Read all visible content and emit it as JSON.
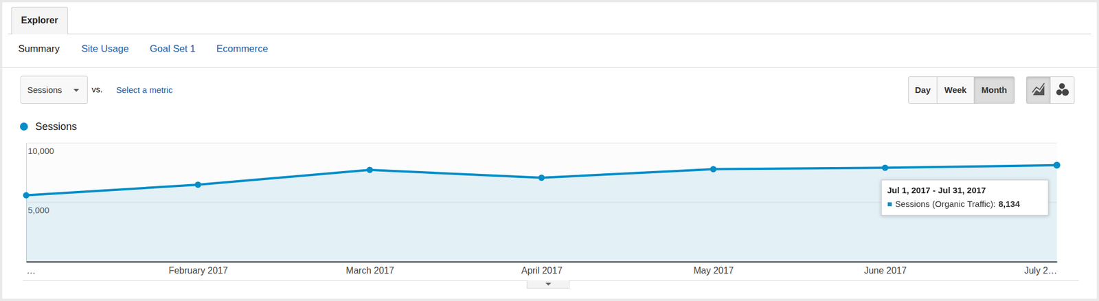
{
  "ui": {
    "tab": "Explorer",
    "subtabs": [
      "Summary",
      "Site Usage",
      "Goal Set 1",
      "Ecommerce"
    ],
    "active_subtab": "Summary",
    "metric": "Sessions",
    "vs": "vs.",
    "select_metric": "Select a metric",
    "periods": [
      "Day",
      "Week",
      "Month"
    ],
    "selected_period": "Month"
  },
  "chart_data": {
    "type": "area",
    "categories": [
      "…",
      "February 2017",
      "March 2017",
      "April 2017",
      "May 2017",
      "June 2017",
      "July 2…"
    ],
    "series": [
      {
        "name": "Sessions",
        "color": "#058dc7",
        "marker": "circle",
        "values": [
          5600,
          6490,
          7740,
          7080,
          7800,
          7920,
          8134
        ]
      }
    ],
    "ylim": [
      0,
      10000
    ],
    "yticks": [
      {
        "value": 5000,
        "label": "5,000"
      },
      {
        "value": 10000,
        "label": "10,000"
      }
    ],
    "grid": true,
    "legend": "top-left",
    "tooltip": {
      "title": "Jul 1, 2017 - Jul 31, 2017",
      "label": "Sessions (Organic Traffic):",
      "value": 8134,
      "value_label": "8,134"
    }
  }
}
